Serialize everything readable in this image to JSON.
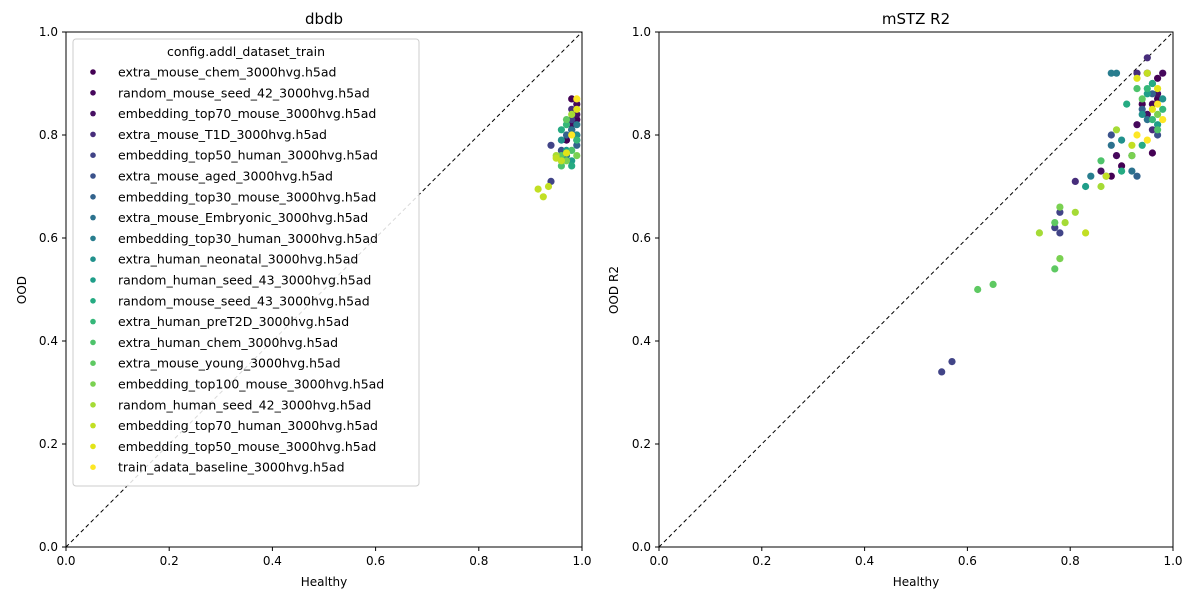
{
  "chart_data": [
    {
      "type": "scatter",
      "title": "dbdb",
      "xlabel": "Healthy",
      "ylabel": "OOD",
      "xlim": [
        0,
        1
      ],
      "ylim": [
        0,
        1
      ],
      "xticks": [
        "0.0",
        "0.2",
        "0.4",
        "0.6",
        "0.8",
        "1.0"
      ],
      "yticks": [
        "0.0",
        "0.2",
        "0.4",
        "0.6",
        "0.8",
        "1.0"
      ],
      "reference_line": "y = x (dashed)",
      "legend": {
        "title": "config.addl_dataset_train",
        "placement": "upper-left"
      },
      "series": [
        {
          "name": "extra_mouse_chem_3000hvg.h5ad",
          "color": "#440154",
          "points": [
            [
              0.98,
              0.87
            ],
            [
              0.99,
              0.83
            ],
            [
              0.97,
              0.79
            ]
          ]
        },
        {
          "name": "random_mouse_seed_42_3000hvg.h5ad",
          "color": "#46085c",
          "points": [
            [
              0.99,
              0.86
            ],
            [
              0.98,
              0.82
            ]
          ]
        },
        {
          "name": "embedding_top70_mouse_3000hvg.h5ad",
          "color": "#471063",
          "points": [
            [
              0.99,
              0.84
            ],
            [
              0.98,
              0.81
            ]
          ]
        },
        {
          "name": "extra_mouse_T1D_3000hvg.h5ad",
          "color": "#472d7b",
          "points": [
            [
              0.98,
              0.85
            ],
            [
              0.99,
              0.8
            ]
          ]
        },
        {
          "name": "embedding_top50_human_3000hvg.h5ad",
          "color": "#414487",
          "points": [
            [
              0.94,
              0.78
            ],
            [
              0.94,
              0.71
            ],
            [
              0.98,
              0.83
            ]
          ]
        },
        {
          "name": "extra_mouse_aged_3000hvg.h5ad",
          "color": "#3b528b",
          "points": [
            [
              0.96,
              0.77
            ],
            [
              0.99,
              0.79
            ]
          ]
        },
        {
          "name": "embedding_top30_mouse_3000hvg.h5ad",
          "color": "#33638d",
          "points": [
            [
              0.97,
              0.8
            ],
            [
              0.99,
              0.78
            ]
          ]
        },
        {
          "name": "extra_mouse_Embryonic_3000hvg.h5ad",
          "color": "#2c728e",
          "points": [
            [
              0.96,
              0.75
            ],
            [
              0.98,
              0.81
            ]
          ]
        },
        {
          "name": "embedding_top30_human_3000hvg.h5ad",
          "color": "#287d8e",
          "points": [
            [
              0.97,
              0.76
            ],
            [
              0.99,
              0.82
            ]
          ]
        },
        {
          "name": "extra_human_neonatal_3000hvg.h5ad",
          "color": "#21918c",
          "points": [
            [
              0.96,
              0.79
            ],
            [
              0.99,
              0.8
            ]
          ]
        },
        {
          "name": "random_human_seed_43_3000hvg.h5ad",
          "color": "#1f9e89",
          "points": [
            [
              0.97,
              0.77
            ],
            [
              0.98,
              0.75
            ]
          ]
        },
        {
          "name": "random_mouse_seed_43_3000hvg.h5ad",
          "color": "#25ab82",
          "points": [
            [
              0.96,
              0.81
            ],
            [
              0.98,
              0.74
            ]
          ]
        },
        {
          "name": "extra_human_preT2D_3000hvg.h5ad",
          "color": "#35b779",
          "points": [
            [
              0.97,
              0.82
            ],
            [
              0.99,
              0.79
            ]
          ]
        },
        {
          "name": "extra_human_chem_3000hvg.h5ad",
          "color": "#4ec36b",
          "points": [
            [
              0.96,
              0.74
            ],
            [
              0.98,
              0.77
            ]
          ]
        },
        {
          "name": "extra_mouse_young_3000hvg.h5ad",
          "color": "#5ec962",
          "points": [
            [
              0.97,
              0.83
            ],
            [
              0.96,
              0.76
            ]
          ]
        },
        {
          "name": "embedding_top100_mouse_3000hvg.h5ad",
          "color": "#7ad151",
          "points": [
            [
              0.97,
              0.75
            ],
            [
              0.99,
              0.76
            ]
          ]
        },
        {
          "name": "random_human_seed_42_3000hvg.h5ad",
          "color": "#a5db36",
          "points": [
            [
              0.95,
              0.76
            ],
            [
              0.98,
              0.84
            ]
          ]
        },
        {
          "name": "embedding_top70_human_3000hvg.h5ad",
          "color": "#c2df23",
          "points": [
            [
              0.915,
              0.695
            ],
            [
              0.925,
              0.68
            ],
            [
              0.935,
              0.7
            ],
            [
              0.95,
              0.755
            ],
            [
              0.96,
              0.75
            ]
          ]
        },
        {
          "name": "embedding_top50_mouse_3000hvg.h5ad",
          "color": "#e2e418",
          "points": [
            [
              0.97,
              0.765
            ],
            [
              0.99,
              0.85
            ]
          ]
        },
        {
          "name": "train_adata_baseline_3000hvg.h5ad",
          "color": "#fde725",
          "points": [
            [
              0.99,
              0.87
            ],
            [
              0.98,
              0.8
            ]
          ]
        }
      ]
    },
    {
      "type": "scatter",
      "title": "mSTZ R2",
      "xlabel": "Healthy",
      "ylabel": "OOD R2",
      "xlim": [
        0,
        1
      ],
      "ylim": [
        0,
        1
      ],
      "xticks": [
        "0.0",
        "0.2",
        "0.4",
        "0.6",
        "0.8",
        "1.0"
      ],
      "yticks": [
        "0.0",
        "0.2",
        "0.4",
        "0.6",
        "0.8",
        "1.0"
      ],
      "reference_line": "y = x (dashed)",
      "series": [
        {
          "name": "extra_mouse_chem_3000hvg.h5ad",
          "color": "#440154",
          "points": [
            [
              0.96,
              0.765
            ],
            [
              0.95,
              0.92
            ],
            [
              0.97,
              0.87
            ],
            [
              0.9,
              0.74
            ],
            [
              0.88,
              0.72
            ],
            [
              0.94,
              0.86
            ],
            [
              0.97,
              0.91
            ]
          ]
        },
        {
          "name": "random_mouse_seed_42_3000hvg.h5ad",
          "color": "#46085c",
          "points": [
            [
              0.93,
              0.82
            ],
            [
              0.96,
              0.86
            ],
            [
              0.98,
              0.92
            ],
            [
              0.89,
              0.76
            ]
          ]
        },
        {
          "name": "embedding_top70_mouse_3000hvg.h5ad",
          "color": "#471063",
          "points": [
            [
              0.95,
              0.84
            ],
            [
              0.97,
              0.88
            ],
            [
              0.86,
              0.73
            ]
          ]
        },
        {
          "name": "extra_mouse_T1D_3000hvg.h5ad",
          "color": "#472d7b",
          "points": [
            [
              0.95,
              0.95
            ],
            [
              0.93,
              0.92
            ],
            [
              0.96,
              0.81
            ],
            [
              0.81,
              0.71
            ]
          ]
        },
        {
          "name": "embedding_top50_human_3000hvg.h5ad",
          "color": "#414487",
          "points": [
            [
              0.55,
              0.34
            ],
            [
              0.57,
              0.36
            ],
            [
              0.77,
              0.62
            ],
            [
              0.78,
              0.61
            ],
            [
              0.78,
              0.65
            ]
          ]
        },
        {
          "name": "extra_mouse_aged_3000hvg.h5ad",
          "color": "#3b528b",
          "points": [
            [
              0.87,
              0.72
            ],
            [
              0.92,
              0.76
            ],
            [
              0.97,
              0.8
            ],
            [
              0.88,
              0.8
            ]
          ]
        },
        {
          "name": "embedding_top30_mouse_3000hvg.h5ad",
          "color": "#33638d",
          "points": [
            [
              0.93,
              0.72
            ],
            [
              0.96,
              0.88
            ],
            [
              0.94,
              0.85
            ]
          ]
        },
        {
          "name": "extra_mouse_Embryonic_3000hvg.h5ad",
          "color": "#2c728e",
          "points": [
            [
              0.88,
              0.78
            ],
            [
              0.95,
              0.83
            ],
            [
              0.92,
              0.73
            ]
          ]
        },
        {
          "name": "embedding_top30_human_3000hvg.h5ad",
          "color": "#287d8e",
          "points": [
            [
              0.88,
              0.92
            ],
            [
              0.89,
              0.92
            ],
            [
              0.96,
              0.9
            ],
            [
              0.84,
              0.72
            ]
          ]
        },
        {
          "name": "extra_human_neonatal_3000hvg.h5ad",
          "color": "#21918c",
          "points": [
            [
              0.9,
              0.79
            ],
            [
              0.94,
              0.84
            ],
            [
              0.98,
              0.87
            ]
          ]
        },
        {
          "name": "random_human_seed_43_3000hvg.h5ad",
          "color": "#1f9e89",
          "points": [
            [
              0.83,
              0.7
            ],
            [
              0.95,
              0.88
            ],
            [
              0.97,
              0.82
            ]
          ]
        },
        {
          "name": "random_mouse_seed_43_3000hvg.h5ad",
          "color": "#25ab82",
          "points": [
            [
              0.91,
              0.86
            ],
            [
              0.96,
              0.9
            ],
            [
              0.9,
              0.73
            ],
            [
              0.94,
              0.78
            ]
          ]
        },
        {
          "name": "extra_human_preT2D_3000hvg.h5ad",
          "color": "#35b779",
          "points": [
            [
              0.96,
              0.83
            ],
            [
              0.98,
              0.85
            ],
            [
              0.95,
              0.89
            ]
          ]
        },
        {
          "name": "extra_human_chem_3000hvg.h5ad",
          "color": "#4ec36b",
          "points": [
            [
              0.93,
              0.89
            ],
            [
              0.97,
              0.81
            ],
            [
              0.86,
              0.75
            ]
          ]
        },
        {
          "name": "extra_mouse_young_3000hvg.h5ad",
          "color": "#5ec962",
          "points": [
            [
              0.62,
              0.5
            ],
            [
              0.65,
              0.51
            ],
            [
              0.77,
              0.54
            ],
            [
              0.77,
              0.63
            ],
            [
              0.94,
              0.87
            ]
          ]
        },
        {
          "name": "embedding_top100_mouse_3000hvg.h5ad",
          "color": "#7ad151",
          "points": [
            [
              0.78,
              0.56
            ],
            [
              0.78,
              0.66
            ],
            [
              0.92,
              0.76
            ],
            [
              0.97,
              0.84
            ]
          ]
        },
        {
          "name": "random_human_seed_42_3000hvg.h5ad",
          "color": "#a5db36",
          "points": [
            [
              0.74,
              0.61
            ],
            [
              0.79,
              0.63
            ],
            [
              0.81,
              0.65
            ],
            [
              0.86,
              0.7
            ],
            [
              0.89,
              0.81
            ]
          ]
        },
        {
          "name": "embedding_top70_human_3000hvg.h5ad",
          "color": "#c2df23",
          "points": [
            [
              0.83,
              0.61
            ],
            [
              0.87,
              0.72
            ],
            [
              0.92,
              0.78
            ],
            [
              0.95,
              0.92
            ]
          ]
        },
        {
          "name": "embedding_top50_mouse_3000hvg.h5ad",
          "color": "#e2e418",
          "points": [
            [
              0.93,
              0.91
            ],
            [
              0.96,
              0.85
            ],
            [
              0.97,
              0.89
            ]
          ]
        },
        {
          "name": "train_adata_baseline_3000hvg.h5ad",
          "color": "#fde725",
          "points": [
            [
              0.93,
              0.8
            ],
            [
              0.97,
              0.86
            ],
            [
              0.98,
              0.83
            ],
            [
              0.95,
              0.79
            ]
          ]
        }
      ]
    }
  ]
}
